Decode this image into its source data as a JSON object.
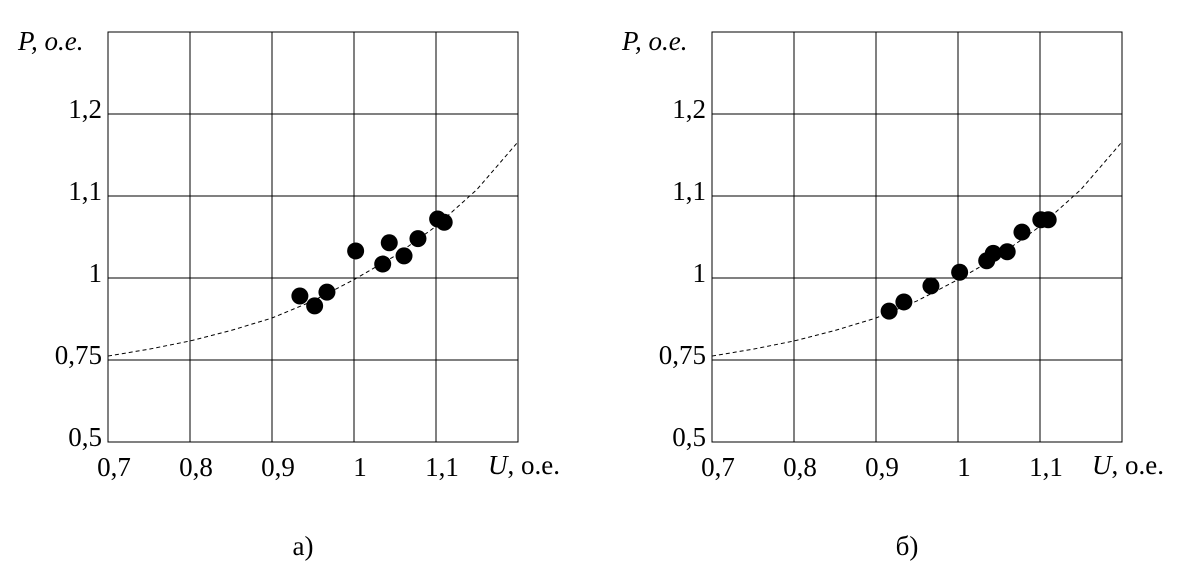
{
  "chart_data": [
    {
      "type": "scatter",
      "ylabel": "P, о.е.",
      "xlabel_symbol": "U",
      "xlabel_unit": ", о.е.",
      "caption": "а)",
      "xlim": [
        0.7,
        1.2
      ],
      "xticks": [
        {
          "value": 0.7,
          "label": "0,7"
        },
        {
          "value": 0.8,
          "label": "0,8"
        },
        {
          "value": 0.9,
          "label": "0,9"
        },
        1,
        {
          "value": 1.1,
          "label": "1,1"
        }
      ],
      "ylim": [
        0.5,
        1.3
      ],
      "yticks": [
        {
          "value": 0.5,
          "label": "0,5"
        },
        {
          "value": 0.75,
          "label": "0,75"
        },
        1,
        {
          "value": 1.1,
          "label": "1,1"
        },
        {
          "value": 1.2,
          "label": "1,2"
        }
      ],
      "grid": true,
      "color": "#000000",
      "x": [
        0.934,
        0.952,
        0.967,
        1.002,
        1.035,
        1.043,
        1.061,
        1.078,
        1.102,
        1.11
      ],
      "values": [
        0.945,
        0.915,
        0.957,
        1.033,
        1.017,
        1.043,
        1.027,
        1.048,
        1.072,
        1.068
      ],
      "curve": {
        "x": [
          0.7,
          0.75,
          0.8,
          0.85,
          0.9,
          0.95,
          1.0,
          1.05,
          1.1,
          1.15,
          1.2
        ],
        "values": [
          0.762,
          0.783,
          0.808,
          0.84,
          0.878,
          0.93,
          0.995,
          1.027,
          1.063,
          1.108,
          1.166
        ]
      }
    },
    {
      "type": "scatter",
      "ylabel": "P, о.е.",
      "xlabel_symbol": "U",
      "xlabel_unit": ", о.е.",
      "caption": "б)",
      "xlim": [
        0.7,
        1.2
      ],
      "xticks": [
        {
          "value": 0.7,
          "label": "0,7"
        },
        {
          "value": 0.8,
          "label": "0,8"
        },
        {
          "value": 0.9,
          "label": "0,9"
        },
        1,
        {
          "value": 1.1,
          "label": "1,1"
        }
      ],
      "ylim": [
        0.5,
        1.3
      ],
      "yticks": [
        {
          "value": 0.5,
          "label": "0,5"
        },
        {
          "value": 0.75,
          "label": "0,75"
        },
        1,
        {
          "value": 1.1,
          "label": "1,1"
        },
        {
          "value": 1.2,
          "label": "1,2"
        }
      ],
      "grid": true,
      "color": "#000000",
      "x": [
        0.916,
        0.934,
        0.967,
        1.002,
        1.035,
        1.043,
        1.06,
        1.078,
        1.101,
        1.11
      ],
      "values": [
        0.899,
        0.927,
        0.976,
        1.007,
        1.021,
        1.03,
        1.032,
        1.056,
        1.071,
        1.071
      ],
      "curve": {
        "x": [
          0.7,
          0.75,
          0.8,
          0.85,
          0.9,
          0.95,
          1.0,
          1.05,
          1.1,
          1.15,
          1.2
        ],
        "values": [
          0.762,
          0.783,
          0.808,
          0.84,
          0.878,
          0.93,
          0.995,
          1.027,
          1.063,
          1.108,
          1.166
        ]
      }
    }
  ]
}
